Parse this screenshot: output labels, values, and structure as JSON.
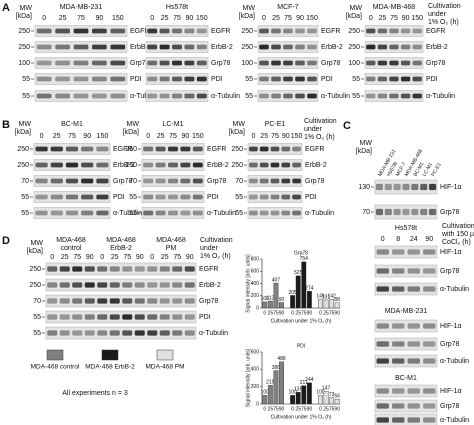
{
  "panel_a": {
    "label": "A",
    "note": [
      "Cultivation",
      "under",
      "1% O₂ (h)"
    ],
    "blots": [
      {
        "mw_header": [
          "MW",
          "[kDa]"
        ],
        "title": "MDA-MB-231",
        "lanes": [
          "0",
          "25",
          "75",
          "90",
          "150"
        ],
        "rows": [
          {
            "protein": "EGFR",
            "mw": "250"
          },
          {
            "protein": "ErbB-2",
            "mw": "250"
          },
          {
            "protein": "Grp78",
            "mw": "100"
          },
          {
            "protein": "PDI",
            "mw": "55"
          },
          {
            "protein": "α-Tubulin",
            "mw": "55"
          }
        ]
      },
      {
        "title": "Hs578t",
        "lanes": [
          "0",
          "25",
          "75",
          "90",
          "150"
        ],
        "rows": [
          {
            "protein": "EGFR"
          },
          {
            "protein": "ErbB-2"
          },
          {
            "protein": "Grp78"
          },
          {
            "protein": "PDI"
          },
          {
            "protein": "α-Tubulin"
          }
        ]
      },
      {
        "mw_header": [
          "MW",
          "[kDa]"
        ],
        "title": "MCF-7",
        "lanes": [
          "0",
          "25",
          "75",
          "90",
          "150"
        ],
        "rows": [
          {
            "protein": "EGFR",
            "mw": "250"
          },
          {
            "protein": "ErbB-2",
            "mw": "250"
          },
          {
            "protein": "Grp78",
            "mw": "100"
          },
          {
            "protein": "PDI",
            "mw": "55"
          },
          {
            "protein": "α-Tubulin",
            "mw": "55"
          }
        ]
      },
      {
        "mw_header": [
          "MW",
          "[kDa]"
        ],
        "title": "MDA-MB-468",
        "lanes": [
          "0",
          "25",
          "75",
          "90",
          "150"
        ],
        "rows": [
          {
            "protein": "EGFR",
            "mw": "250"
          },
          {
            "protein": "ErbB-2",
            "mw": "250"
          },
          {
            "protein": "Grp78",
            "mw": "100"
          },
          {
            "protein": "PDI",
            "mw": "55"
          },
          {
            "protein": "α-Tubulin",
            "mw": "55"
          }
        ]
      }
    ]
  },
  "panel_b": {
    "label": "B",
    "note": [
      "Cultivation",
      "under",
      "1% O₂ (h)"
    ],
    "blots": [
      {
        "mw_header": [
          "MW",
          "[kDa]"
        ],
        "title": "BC-M1",
        "lanes": [
          "0",
          "25",
          "75",
          "90",
          "150"
        ],
        "rows": [
          {
            "protein": "EGFR",
            "mw": "250"
          },
          {
            "protein": "ErbB-2",
            "mw": "250"
          },
          {
            "protein": "Grp78",
            "mw": "70"
          },
          {
            "protein": "PDI",
            "mw": "55"
          },
          {
            "protein": "α-Tubulin",
            "mw": "55"
          }
        ]
      },
      {
        "mw_header": [
          "MW",
          "[kDa]"
        ],
        "title": "LC-M1",
        "lanes": [
          "0",
          "25",
          "75",
          "90",
          "150"
        ],
        "rows": [
          {
            "protein": "EGFR",
            "mw": "250"
          },
          {
            "protein": "ErbB-2",
            "mw": "250"
          },
          {
            "protein": "Grp78",
            "mw": "70"
          },
          {
            "protein": "PDI",
            "mw": "55"
          },
          {
            "protein": "α-Tubulin",
            "mw": "55"
          }
        ]
      },
      {
        "mw_header": [
          "MW",
          "[kDa]"
        ],
        "title": "PC-E1",
        "lanes": [
          "0",
          "25",
          "75",
          "90",
          "150"
        ],
        "rows": [
          {
            "protein": "EGFR",
            "mw": "250"
          },
          {
            "protein": "ErbB-2",
            "mw": "250"
          },
          {
            "protein": "Grp78",
            "mw": "70"
          },
          {
            "protein": "PDI",
            "mw": "55"
          },
          {
            "protein": "α-Tubulin",
            "mw": "55"
          }
        ]
      }
    ]
  },
  "panel_c": {
    "label": "C",
    "top": {
      "mw_header": [
        "MW",
        "[kDa]"
      ],
      "lanes": [
        "MDA-MB-231",
        "Hs578t",
        "MCF-7",
        "MDA-MB-468",
        "BC-M1",
        "LC-M1",
        "PC-E1"
      ],
      "rows": [
        {
          "protein": "HIF-1α",
          "mw": "130"
        },
        {
          "protein": "Grp78",
          "mw": "70"
        }
      ]
    },
    "blots": [
      {
        "title": "Hs578t",
        "note": [
          "Cultivation",
          "with 150 µmol/L",
          "CoCl₂ (h)"
        ],
        "lanes": [
          "0",
          "8",
          "24",
          "90"
        ],
        "rows": [
          {
            "protein": "HIF-1α"
          },
          {
            "protein": "Grp78"
          },
          {
            "protein": "α-Tubulin"
          }
        ]
      },
      {
        "title": "MDA-MB-231",
        "rows": [
          {
            "protein": "HIF-1α"
          },
          {
            "protein": "Grp78"
          },
          {
            "protein": "α-Tubulin"
          }
        ]
      },
      {
        "title": "BC-M1",
        "rows": [
          {
            "protein": "HIF-1α"
          },
          {
            "protein": "Grp78"
          },
          {
            "protein": "α-Tubulin"
          }
        ]
      }
    ]
  },
  "panel_d": {
    "label": "D",
    "note": [
      "Cultivation",
      "under",
      "1% O₂ (h)"
    ],
    "footnote": "All experiments n = 3",
    "blot": {
      "mw_header": [
        "MW",
        "[kDa]"
      ],
      "groups": [
        {
          "name": [
            "MDA-468",
            "control"
          ],
          "lanes": [
            "0",
            "25",
            "75",
            "90"
          ]
        },
        {
          "name": [
            "MDA-468",
            "ErbB-2"
          ],
          "lanes": [
            "0",
            "25",
            "75",
            "90"
          ]
        },
        {
          "name": [
            "MDA-468",
            "PM"
          ],
          "lanes": [
            "0",
            "25",
            "75",
            "90"
          ]
        }
      ],
      "rows": [
        {
          "protein": "EGFR",
          "mw": "250"
        },
        {
          "protein": "ErbB-2",
          "mw": "250"
        },
        {
          "protein": "Grp78",
          "mw": "70"
        },
        {
          "protein": "PDI",
          "mw": "55"
        },
        {
          "protein": "α-Tubulin",
          "mw": "55"
        }
      ]
    }
  },
  "chart_data": [
    {
      "type": "bar",
      "title": "Grp78",
      "y_label": "Signal intensity [arb. units]",
      "x_label": "Cultivation under 1% O₂ (h)",
      "categories": [
        "0",
        "25",
        "75",
        "90"
      ],
      "series": [
        {
          "name": "MDA-468 control",
          "color": "#808080",
          "values": [
            100,
            113,
            407,
            90
          ]
        },
        {
          "name": "MDA-468 ErbB-2",
          "color": "#1a1a1a",
          "values": [
            205,
            525,
            754,
            274
          ]
        },
        {
          "name": "MDA-468 PM",
          "color": "#e0e0e0",
          "values": [
            145,
            131,
            142,
            88
          ]
        }
      ],
      "ylim": [
        0,
        800
      ],
      "yticks": [
        0,
        200,
        400,
        600,
        800
      ]
    },
    {
      "type": "bar",
      "title": "PDI",
      "y_label": "Signal intensity [arb. units]",
      "x_label": "Cultivation under 1% O₂ (h)",
      "categories": [
        "0",
        "25",
        "75",
        "90"
      ],
      "series": [
        {
          "color": "#808080",
          "values": [
            100,
            215,
            386,
            488
          ]
        },
        {
          "color": "#1a1a1a",
          "values": [
            100,
            135,
            211,
            244
          ]
        },
        {
          "color": "#e0e0e0",
          "values": [
            100,
            147,
            73,
            56
          ]
        }
      ],
      "ylim": [
        0,
        600
      ],
      "yticks": [
        0,
        200,
        400,
        600
      ]
    }
  ]
}
